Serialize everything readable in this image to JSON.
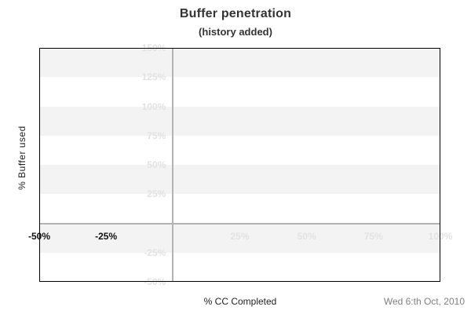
{
  "chart_data": {
    "type": "scatter",
    "title": "Buffer penetration",
    "subtitle": "(history added)",
    "xlabel": "% CC Completed",
    "ylabel": "% Buffer used",
    "date_label": "Wed 6:th Oct, 2010",
    "xlim": [
      -50,
      100
    ],
    "ylim": [
      -50,
      150
    ],
    "band_step": 25,
    "grid": {
      "alternating_horizontal_bands": true,
      "x_zero_line": true,
      "y_zero_line": true
    },
    "x_ticks": [
      {
        "value": -50,
        "label": "-50%",
        "style": "dark"
      },
      {
        "value": -25,
        "label": "-25%",
        "style": "dark"
      },
      {
        "value": 25,
        "label": "25%",
        "style": "faint"
      },
      {
        "value": 50,
        "label": "50%",
        "style": "faint"
      },
      {
        "value": 75,
        "label": "75%",
        "style": "faint"
      },
      {
        "value": 100,
        "label": "100%",
        "style": "faint"
      }
    ],
    "y_ticks": [
      {
        "value": 150,
        "label": "150%"
      },
      {
        "value": 125,
        "label": "125%"
      },
      {
        "value": 100,
        "label": "100%"
      },
      {
        "value": 75,
        "label": "75%"
      },
      {
        "value": 50,
        "label": "50%"
      },
      {
        "value": 25,
        "label": "25%"
      },
      {
        "value": -25,
        "label": "-25%"
      },
      {
        "value": -50,
        "label": "-50%"
      }
    ],
    "series": [],
    "legend": null,
    "colors": {
      "band": "#f3f3f3",
      "faint_label": "#e2e2e2",
      "dark_label": "#111111",
      "zero_line": "#b3b3b3",
      "plot_border": "#000000",
      "title": "#333333",
      "date": "#808080"
    }
  }
}
